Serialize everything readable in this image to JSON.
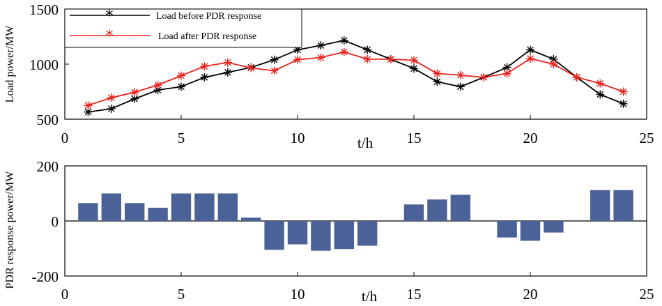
{
  "chart_data": [
    {
      "type": "line",
      "title": "",
      "xlabel": "t/h",
      "ylabel": "Load power/MW",
      "xlim": [
        0,
        25
      ],
      "ylim": [
        500,
        1500
      ],
      "xticks": [
        0,
        5,
        10,
        15,
        20,
        25
      ],
      "yticks": [
        500,
        1000,
        1500
      ],
      "legend_position": "top-left",
      "x": [
        1,
        2,
        3,
        4,
        5,
        6,
        7,
        8,
        9,
        10,
        11,
        12,
        13,
        14,
        15,
        16,
        17,
        18,
        19,
        20,
        21,
        22,
        23,
        24
      ],
      "series": [
        {
          "name": "Load before PDR response",
          "color": "#000000",
          "values": [
            565,
            595,
            685,
            765,
            795,
            880,
            925,
            970,
            1040,
            1130,
            1170,
            1215,
            1130,
            1045,
            960,
            840,
            795,
            880,
            970,
            1130,
            1045,
            880,
            725,
            640
          ]
        },
        {
          "name": "Load after PDR response",
          "color": "#e8231d",
          "values": [
            625,
            695,
            745,
            810,
            895,
            980,
            1015,
            965,
            940,
            1040,
            1060,
            1110,
            1045,
            1045,
            1035,
            915,
            900,
            880,
            915,
            1050,
            1000,
            880,
            825,
            750
          ]
        }
      ]
    },
    {
      "type": "bar",
      "title": "",
      "xlabel": "t/h",
      "ylabel": "PDR response power/MW",
      "xlim": [
        0,
        25
      ],
      "ylim": [
        -200,
        200
      ],
      "xticks": [
        0,
        5,
        10,
        15,
        20,
        25
      ],
      "yticks": [
        -200,
        0,
        200
      ],
      "bar_color": "#4a6298",
      "x": [
        1,
        2,
        3,
        4,
        5,
        6,
        7,
        8,
        9,
        10,
        11,
        12,
        13,
        14,
        15,
        16,
        17,
        18,
        19,
        20,
        21,
        22,
        23,
        24
      ],
      "values": [
        65,
        100,
        65,
        48,
        100,
        100,
        100,
        12,
        -105,
        -85,
        -108,
        -102,
        -90,
        0,
        60,
        78,
        95,
        0,
        -60,
        -72,
        -42,
        0,
        112,
        112
      ]
    }
  ]
}
